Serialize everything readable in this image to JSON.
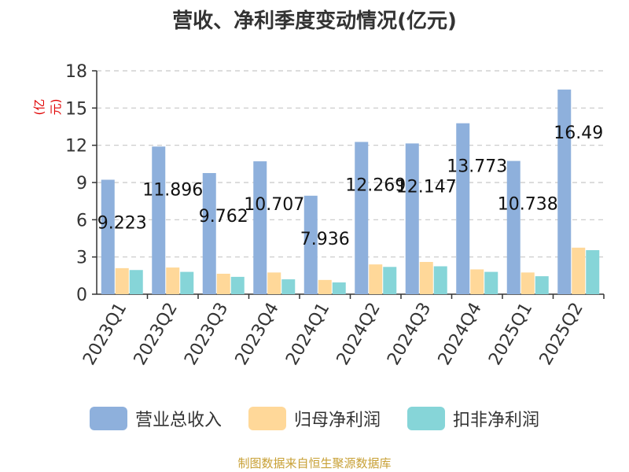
{
  "title": "营收、净利季度变动情况(亿元)",
  "unit": "(亿元)",
  "footer": "制图数据来自恒生聚源数据库",
  "colors": [
    "#8eb0dc",
    "#ffd899",
    "#86d5d8"
  ],
  "chart_data": {
    "type": "bar",
    "title": "营收、净利季度变动情况(亿元)",
    "ylabel": "(亿元)",
    "ylim": [
      0,
      18
    ],
    "yticks": [
      0,
      3,
      6,
      9,
      12,
      15,
      18
    ],
    "grid": true,
    "legend": "bottom",
    "categories": [
      "2023Q1",
      "2023Q2",
      "2023Q3",
      "2023Q4",
      "2024Q1",
      "2024Q2",
      "2024Q3",
      "2024Q4",
      "2025Q1",
      "2025Q2"
    ],
    "data_labels": [
      "9.223",
      "11.896",
      "9.762",
      "10.707",
      "7.936",
      "12.269",
      "12.147",
      "13.773",
      "10.738",
      "16.49"
    ],
    "series": [
      {
        "name": "营业总收入",
        "values": [
          9.223,
          11.896,
          9.762,
          10.707,
          7.936,
          12.269,
          12.147,
          13.773,
          10.738,
          16.49
        ]
      },
      {
        "name": "归母净利润",
        "values": [
          2.1,
          2.15,
          1.65,
          1.75,
          1.15,
          2.4,
          2.6,
          2.0,
          1.75,
          3.75
        ]
      },
      {
        "name": "扣非净利润",
        "values": [
          1.95,
          1.8,
          1.4,
          1.2,
          0.95,
          2.2,
          2.25,
          1.8,
          1.45,
          3.55
        ]
      }
    ]
  }
}
